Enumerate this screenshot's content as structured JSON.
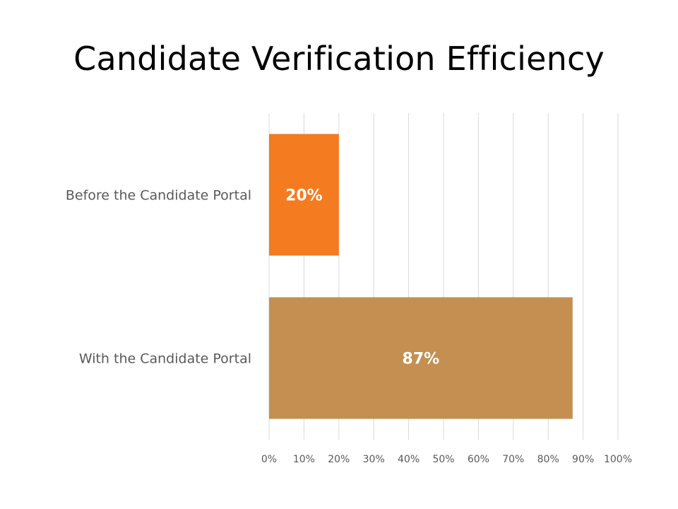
{
  "chart_data": {
    "type": "bar",
    "orientation": "horizontal",
    "title": "Candidate Verification Efficiency",
    "categories": [
      "Before the Candidate Portal",
      "With the Candidate Portal"
    ],
    "values": [
      20,
      87
    ],
    "data_labels": [
      "20%",
      "87%"
    ],
    "bar_colors": [
      "#F47B20",
      "#C48F50"
    ],
    "xlim": [
      0,
      100
    ],
    "x_ticks": [
      0,
      10,
      20,
      30,
      40,
      50,
      60,
      70,
      80,
      90,
      100
    ],
    "x_tick_labels": [
      "0%",
      "10%",
      "20%",
      "30%",
      "40%",
      "50%",
      "60%",
      "70%",
      "80%",
      "90%",
      "100%"
    ],
    "xlabel": "",
    "ylabel": "",
    "grid": "vertical",
    "legend": "none"
  }
}
